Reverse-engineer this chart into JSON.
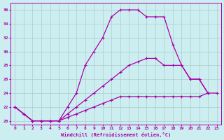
{
  "xlabel": "Windchill (Refroidissement éolien,°C)",
  "background_color": "#cceef0",
  "grid_color": "#aacccc",
  "line_color": "#aa00aa",
  "xlim": [
    -0.5,
    23.5
  ],
  "ylim": [
    19.5,
    37
  ],
  "yticks": [
    20,
    22,
    24,
    26,
    28,
    30,
    32,
    34,
    36
  ],
  "xticks": [
    0,
    1,
    2,
    3,
    4,
    5,
    6,
    7,
    8,
    9,
    10,
    11,
    12,
    13,
    14,
    15,
    16,
    17,
    18,
    19,
    20,
    21,
    22,
    23
  ],
  "series": [
    {
      "x": [
        0,
        1,
        2,
        3,
        4,
        5,
        6,
        7,
        8,
        9,
        10,
        11,
        12,
        13,
        14,
        15,
        16,
        17,
        18,
        19,
        20,
        21,
        22
      ],
      "y": [
        22,
        21,
        20,
        20,
        20,
        20,
        22,
        24,
        28,
        30,
        32,
        35,
        36,
        36,
        36,
        35,
        35,
        35,
        31,
        28,
        26,
        26,
        24
      ]
    },
    {
      "x": [
        0,
        1,
        2,
        3,
        4,
        5,
        6,
        7,
        8,
        9,
        10,
        11,
        12,
        13,
        14,
        15,
        16,
        17,
        18,
        19,
        20,
        21,
        22
      ],
      "y": [
        22,
        21,
        20,
        20,
        20,
        20,
        21,
        22,
        23,
        24,
        25,
        26,
        27,
        28,
        28.5,
        29,
        29,
        28,
        28,
        28,
        26,
        26,
        24
      ]
    },
    {
      "x": [
        0,
        1,
        2,
        3,
        4,
        5,
        6,
        7,
        8,
        9,
        10,
        11,
        12,
        13,
        14,
        15,
        16,
        17,
        18,
        19,
        20,
        21,
        22,
        23
      ],
      "y": [
        22,
        21,
        20,
        20,
        20,
        20,
        20.5,
        21,
        21.5,
        22,
        22.5,
        23,
        23.5,
        23.5,
        23.5,
        23.5,
        23.5,
        23.5,
        23.5,
        23.5,
        23.5,
        23.5,
        24,
        24
      ]
    }
  ]
}
